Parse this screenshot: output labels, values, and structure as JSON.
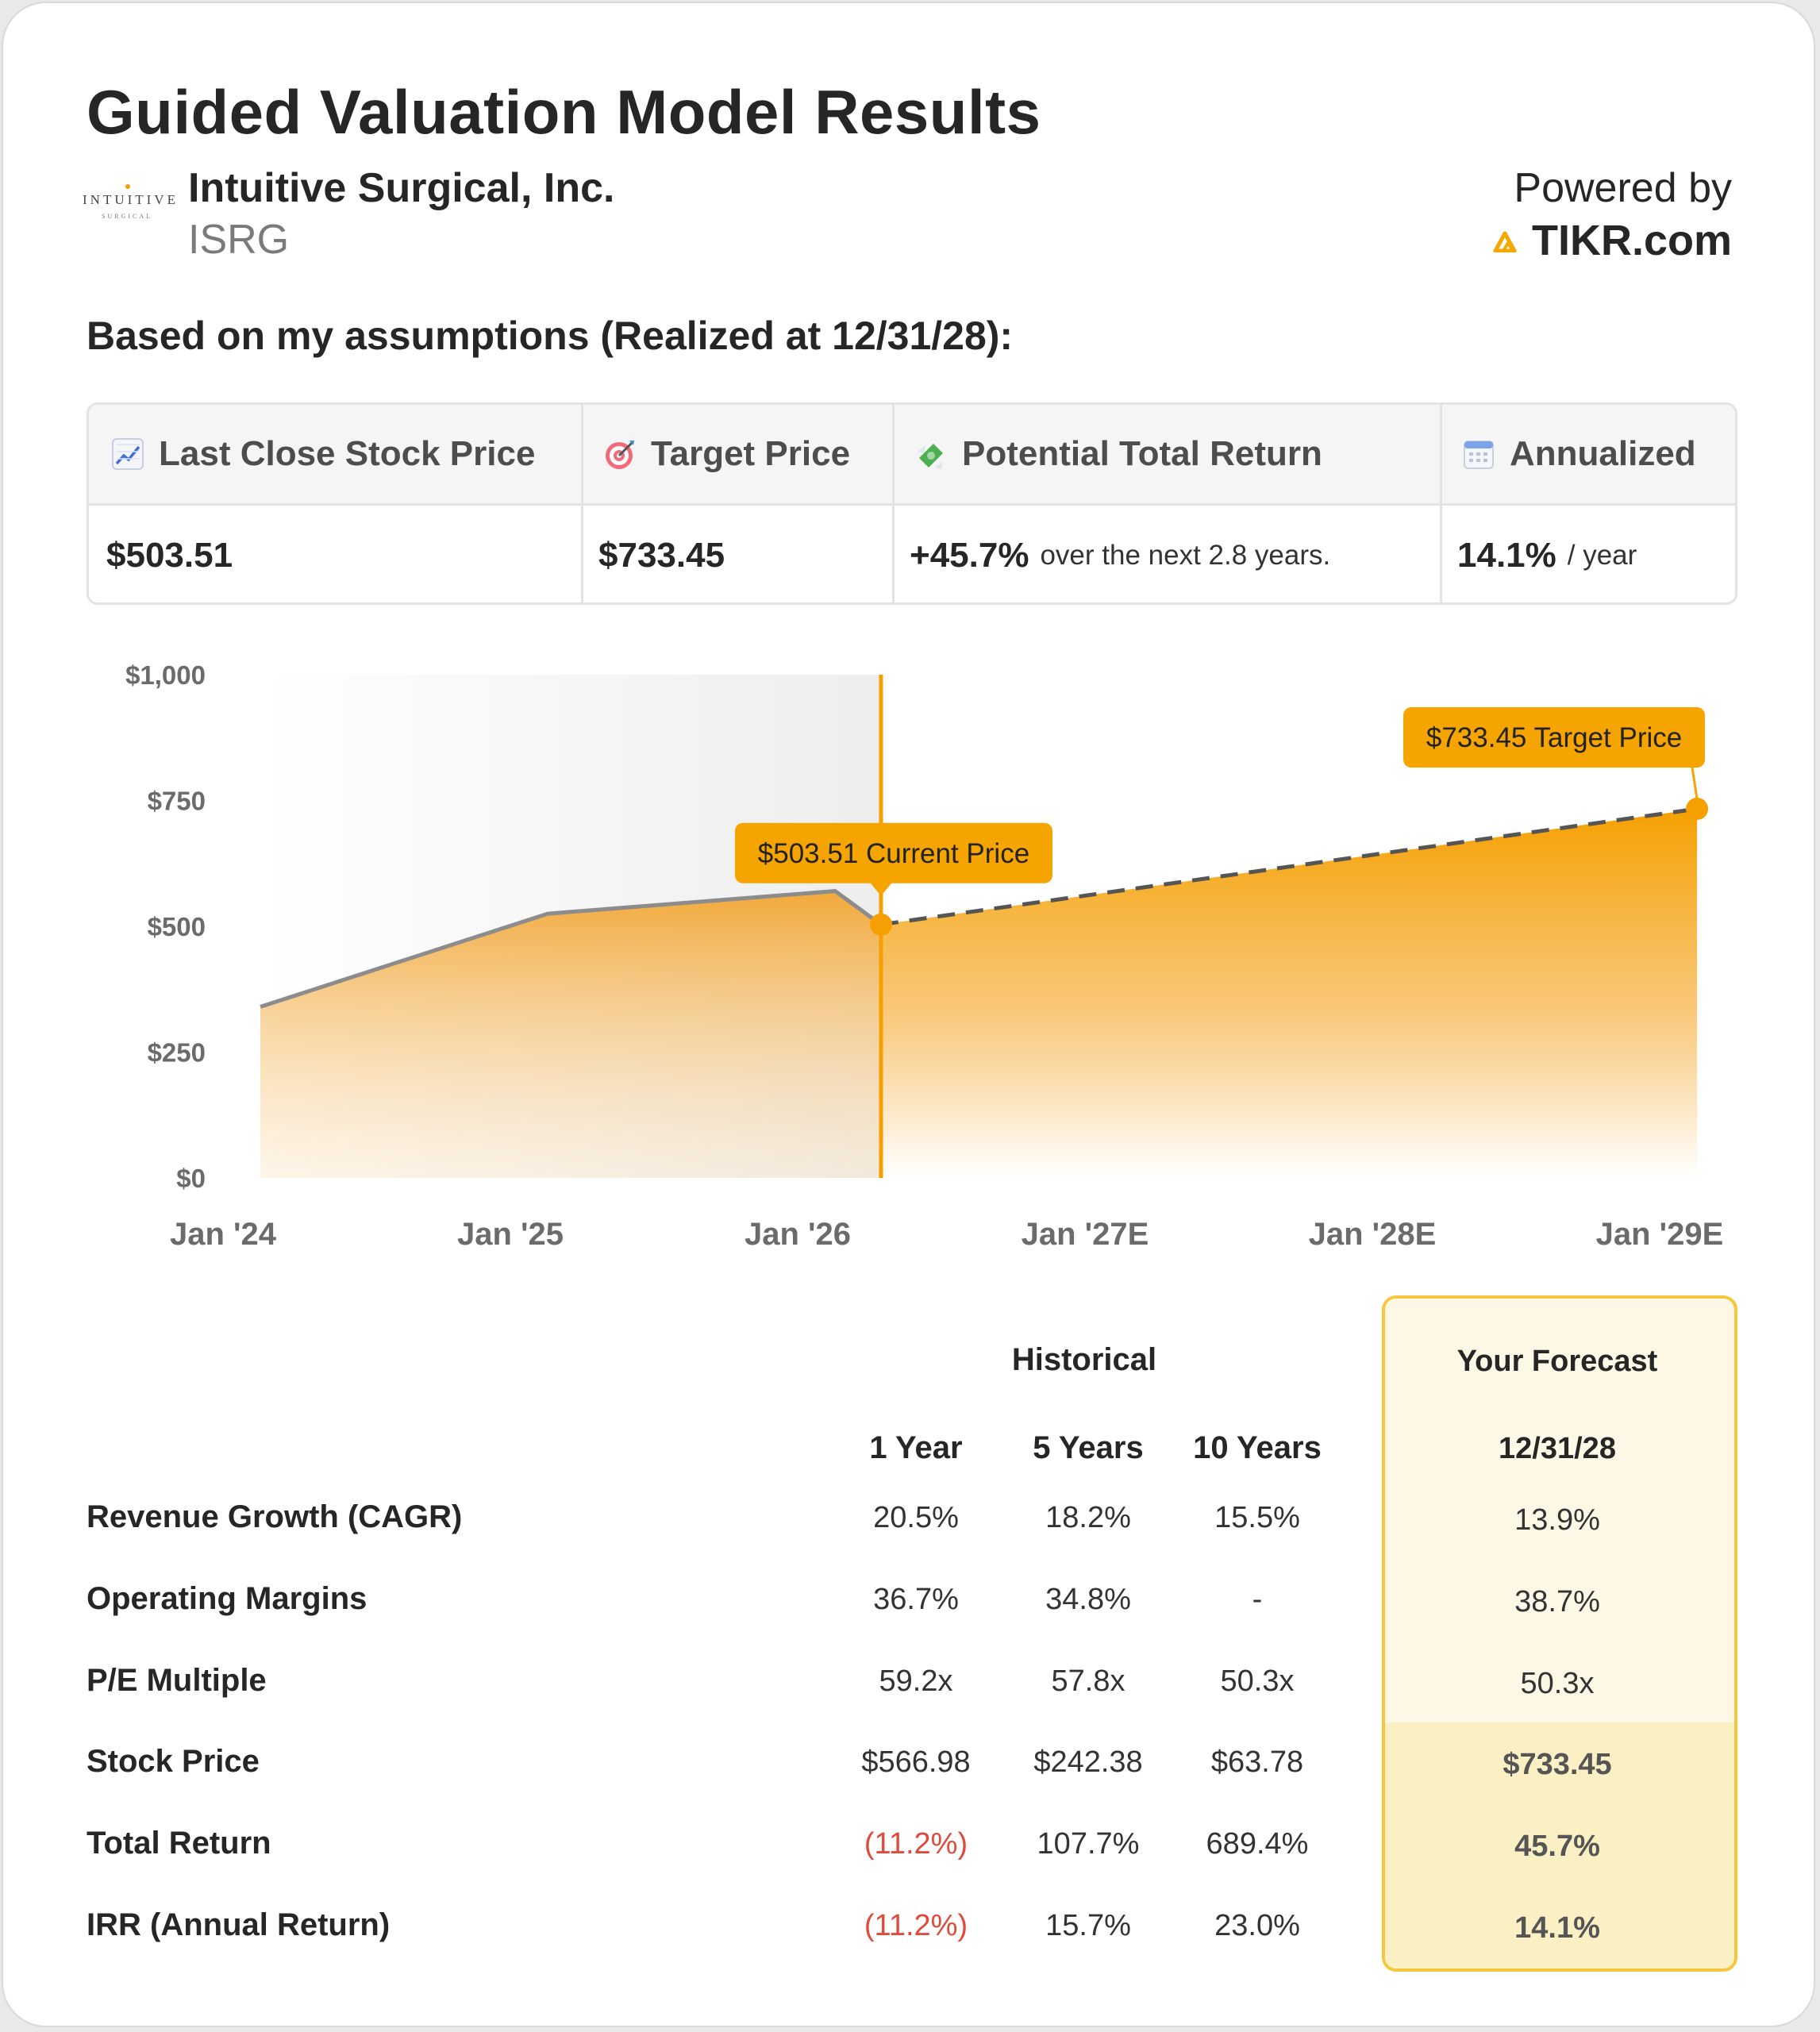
{
  "header": {
    "title": "Guided Valuation Model Results",
    "company": "Intuitive Surgical, Inc.",
    "ticker": "ISRG",
    "logo_text": "INTUITIVE",
    "logo_subtext": "SURGICAL",
    "powered_by": "Powered by",
    "brand": "TIKR.com",
    "brand_color": "#f5a800"
  },
  "assumptions_text": "Based on my assumptions (Realized at 12/31/28):",
  "stats": {
    "last_close_label": "Last Close Stock Price",
    "last_close_value": "$503.51",
    "target_label": "Target Price",
    "target_value": "$733.45",
    "return_label": "Potential Total Return",
    "return_value": "+45.7%",
    "return_note": "over the next 2.8 years.",
    "annualized_label": "Annualized",
    "annualized_value": "14.1%",
    "annualized_note": "/ year",
    "icons": [
      "chart-increasing-icon",
      "target-icon",
      "money-wings-icon",
      "calendar-icon"
    ]
  },
  "chart_data": {
    "type": "area",
    "x_ticks": [
      "Jan '24",
      "Jan '25",
      "Jan '26",
      "Jan '27E",
      "Jan '28E",
      "Jan '29E"
    ],
    "y_ticks": [
      "$1,000",
      "$750",
      "$500",
      "$250",
      "$0"
    ],
    "ylim": [
      0,
      1000
    ],
    "historical": [
      {
        "x": 2024.13,
        "y": 340
      },
      {
        "x": 2025.13,
        "y": 525
      },
      {
        "x": 2026.13,
        "y": 570
      },
      {
        "x": 2026.29,
        "y": 503.51
      }
    ],
    "forecast": [
      {
        "x": 2026.29,
        "y": 503.51
      },
      {
        "x": 2029.13,
        "y": 733.45
      }
    ],
    "current_marker_x": 2026.29,
    "current_label": "$503.51 Current Price",
    "target_label": "$733.45 Target Price",
    "accent_color": "#f5a000",
    "historical_line_color": "#8c8c8c",
    "grid": false
  },
  "table": {
    "historical_header": "Historical",
    "forecast_header": "Your Forecast",
    "columns": [
      "1 Year",
      "5 Years",
      "10 Years"
    ],
    "forecast_date": "12/31/28",
    "rows": [
      {
        "label": "Revenue Growth (CAGR)",
        "values": [
          "20.5%",
          "18.2%",
          "15.5%"
        ],
        "forecast": "13.9%"
      },
      {
        "label": "Operating Margins",
        "values": [
          "36.7%",
          "34.8%",
          "-"
        ],
        "forecast": "38.7%"
      },
      {
        "label": "P/E Multiple",
        "values": [
          "59.2x",
          "57.8x",
          "50.3x"
        ],
        "forecast": "50.3x"
      },
      {
        "label": "Stock Price",
        "values": [
          "$566.98",
          "$242.38",
          "$63.78"
        ],
        "forecast": "$733.45"
      },
      {
        "label": "Total Return",
        "values": [
          "(11.2%)",
          "107.7%",
          "689.4%"
        ],
        "forecast": "45.7%"
      },
      {
        "label": "IRR (Annual Return)",
        "values": [
          "(11.2%)",
          "15.7%",
          "23.0%"
        ],
        "forecast": "14.1%"
      }
    ],
    "negative_color": "#e04a3c"
  }
}
